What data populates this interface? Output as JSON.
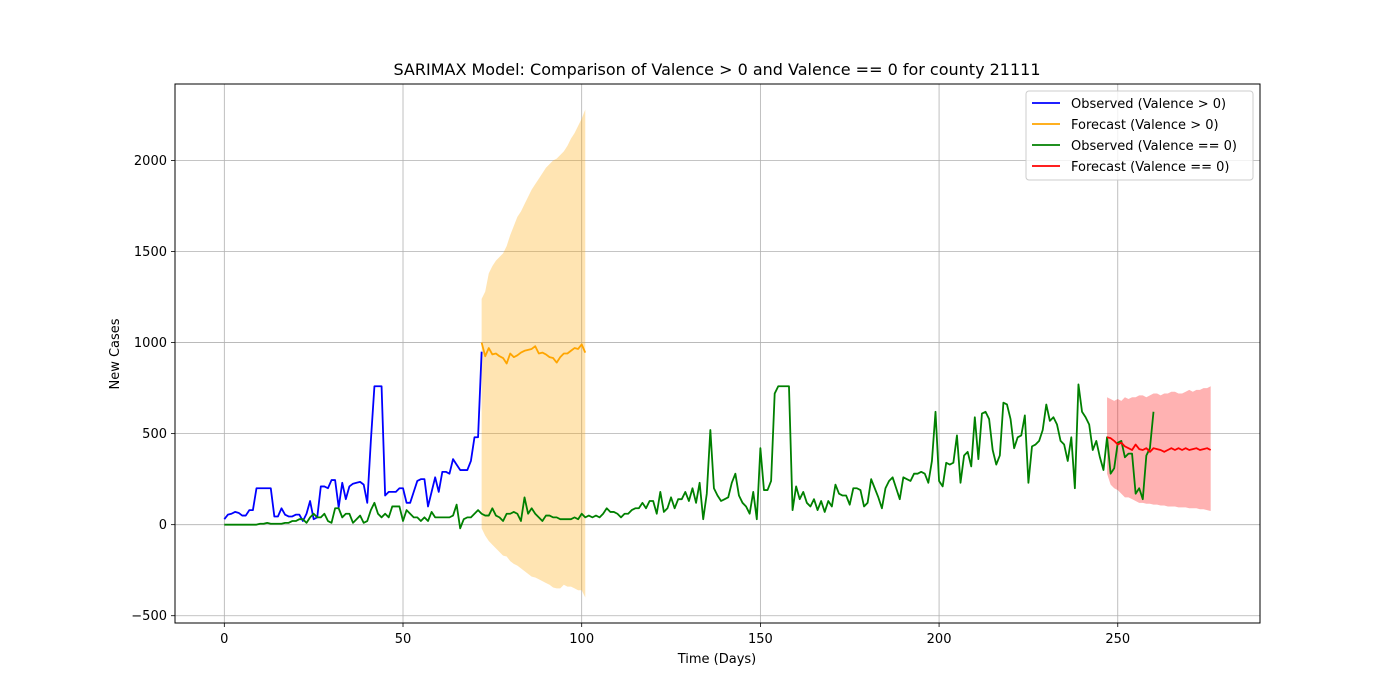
{
  "chart_data": {
    "type": "line",
    "title": "SARIMAX Model: Comparison of Valence > 0 and Valence == 0 for county 21111",
    "xlabel": "Time (Days)",
    "ylabel": "New Cases",
    "xlim": [
      -13.8,
      289.8
    ],
    "ylim": [
      -540,
      2420
    ],
    "xticks": [
      0,
      50,
      100,
      150,
      200,
      250
    ],
    "yticks": [
      -500,
      0,
      500,
      1000,
      1500,
      2000
    ],
    "xtick_labels": [
      "0",
      "50",
      "100",
      "150",
      "200",
      "250"
    ],
    "ytick_labels": [
      "−500",
      "0",
      "500",
      "1000",
      "1500",
      "2000"
    ],
    "grid": true,
    "legend_position": "top-right",
    "legend": [
      {
        "label": "Observed (Valence > 0)",
        "color": "#0000ff"
      },
      {
        "label": "Forecast (Valence > 0)",
        "color": "#ffa500"
      },
      {
        "label": "Observed (Valence == 0)",
        "color": "#008000"
      },
      {
        "label": "Forecast (Valence == 0)",
        "color": "#ff0000"
      }
    ],
    "series": [
      {
        "name": "Observed (Valence > 0)",
        "color": "#0000ff",
        "x_start": 0,
        "values": [
          30,
          55,
          60,
          70,
          65,
          50,
          50,
          80,
          80,
          200,
          200,
          200,
          200,
          200,
          45,
          45,
          90,
          55,
          45,
          45,
          55,
          55,
          20,
          60,
          130,
          30,
          40,
          210,
          210,
          200,
          245,
          245,
          95,
          230,
          140,
          210,
          225,
          230,
          235,
          220,
          120,
          460,
          760,
          760,
          760,
          160,
          180,
          180,
          180,
          200,
          200,
          120,
          120,
          180,
          240,
          250,
          250,
          100,
          180,
          260,
          180,
          290,
          290,
          280,
          360,
          330,
          300,
          300,
          300,
          350,
          480,
          480,
          950
        ]
      },
      {
        "name": "Forecast (Valence > 0)",
        "color": "#ffa500",
        "x_start": 72,
        "values": [
          1000,
          925,
          970,
          935,
          940,
          925,
          915,
          885,
          940,
          920,
          930,
          945,
          955,
          960,
          965,
          980,
          940,
          945,
          935,
          920,
          915,
          890,
          920,
          940,
          940,
          955,
          970,
          965,
          990,
          945
        ],
        "ci_lower": [
          -20,
          -60,
          -90,
          -110,
          -130,
          -150,
          -170,
          -175,
          -200,
          -215,
          -225,
          -240,
          -255,
          -270,
          -285,
          -290,
          -300,
          -310,
          -320,
          -330,
          -345,
          -350,
          -350,
          -330,
          -340,
          -340,
          -350,
          -360,
          -360,
          -400
        ],
        "ci_upper": [
          1240,
          1280,
          1380,
          1420,
          1450,
          1470,
          1490,
          1530,
          1590,
          1640,
          1690,
          1720,
          1760,
          1800,
          1840,
          1870,
          1900,
          1930,
          1960,
          1980,
          2000,
          2010,
          2030,
          2050,
          2080,
          2120,
          2150,
          2190,
          2230,
          2280
        ]
      },
      {
        "name": "Observed (Valence == 0)",
        "color": "#008000",
        "x_start": 0,
        "values": [
          0,
          0,
          0,
          0,
          0,
          0,
          0,
          0,
          0,
          0,
          5,
          5,
          10,
          5,
          5,
          5,
          5,
          10,
          10,
          20,
          20,
          30,
          30,
          10,
          40,
          60,
          40,
          40,
          60,
          20,
          10,
          90,
          90,
          40,
          60,
          60,
          10,
          30,
          50,
          10,
          20,
          80,
          120,
          60,
          40,
          60,
          40,
          100,
          100,
          100,
          20,
          80,
          60,
          40,
          40,
          20,
          40,
          20,
          70,
          40,
          40,
          40,
          40,
          40,
          50,
          110,
          -20,
          30,
          40,
          40,
          60,
          80,
          60,
          50,
          50,
          90,
          50,
          40,
          20,
          60,
          60,
          70,
          60,
          20,
          150,
          60,
          90,
          60,
          40,
          20,
          50,
          50,
          40,
          40,
          30,
          30,
          30,
          30,
          40,
          30,
          60,
          40,
          50,
          40,
          50,
          40,
          60,
          90,
          70,
          70,
          60,
          40,
          60,
          60,
          80,
          90,
          90,
          120,
          90,
          130,
          130,
          60,
          180,
          70,
          90,
          150,
          90,
          140,
          140,
          180,
          130,
          200,
          120,
          230,
          30,
          170,
          520,
          200,
          160,
          130,
          140,
          150,
          230,
          280,
          160,
          120,
          100,
          60,
          180,
          30,
          420,
          190,
          190,
          240,
          720,
          760,
          760,
          760,
          760,
          80,
          210,
          140,
          180,
          120,
          100,
          140,
          80,
          130,
          70,
          130,
          100,
          220,
          170,
          160,
          160,
          110,
          200,
          200,
          190,
          100,
          120,
          250,
          200,
          150,
          90,
          200,
          240,
          260,
          200,
          140,
          260,
          250,
          240,
          280,
          280,
          290,
          280,
          230,
          350,
          620,
          240,
          210,
          340,
          330,
          340,
          490,
          230,
          380,
          400,
          320,
          590,
          360,
          610,
          620,
          580,
          410,
          330,
          380,
          670,
          660,
          580,
          420,
          480,
          490,
          600,
          230,
          430,
          440,
          460,
          520,
          660,
          570,
          590,
          550,
          460,
          440,
          350,
          480,
          200,
          770,
          620,
          590,
          550,
          410,
          460,
          370,
          300,
          480,
          280,
          310,
          450,
          460,
          370,
          390,
          390,
          170,
          200,
          140,
          380,
          420,
          620
        ]
      },
      {
        "name": "Forecast (Valence == 0)",
        "color": "#ff0000",
        "x_start": 247,
        "values": [
          480,
          475,
          460,
          440,
          450,
          430,
          420,
          410,
          440,
          415,
          410,
          420,
          400,
          420,
          415,
          410,
          400,
          410,
          420,
          410,
          420,
          410,
          420,
          410,
          415,
          420,
          410,
          415,
          420,
          410
        ],
        "ci_lower": [
          280,
          220,
          200,
          190,
          170,
          150,
          150,
          140,
          130,
          120,
          120,
          115,
          115,
          110,
          110,
          105,
          105,
          100,
          100,
          100,
          95,
          95,
          95,
          90,
          90,
          90,
          85,
          85,
          80,
          75
        ],
        "ci_upper": [
          700,
          690,
          680,
          690,
          680,
          700,
          690,
          700,
          700,
          710,
          710,
          700,
          710,
          720,
          720,
          710,
          720,
          720,
          730,
          730,
          720,
          720,
          730,
          740,
          730,
          740,
          740,
          750,
          750,
          760
        ]
      }
    ]
  }
}
